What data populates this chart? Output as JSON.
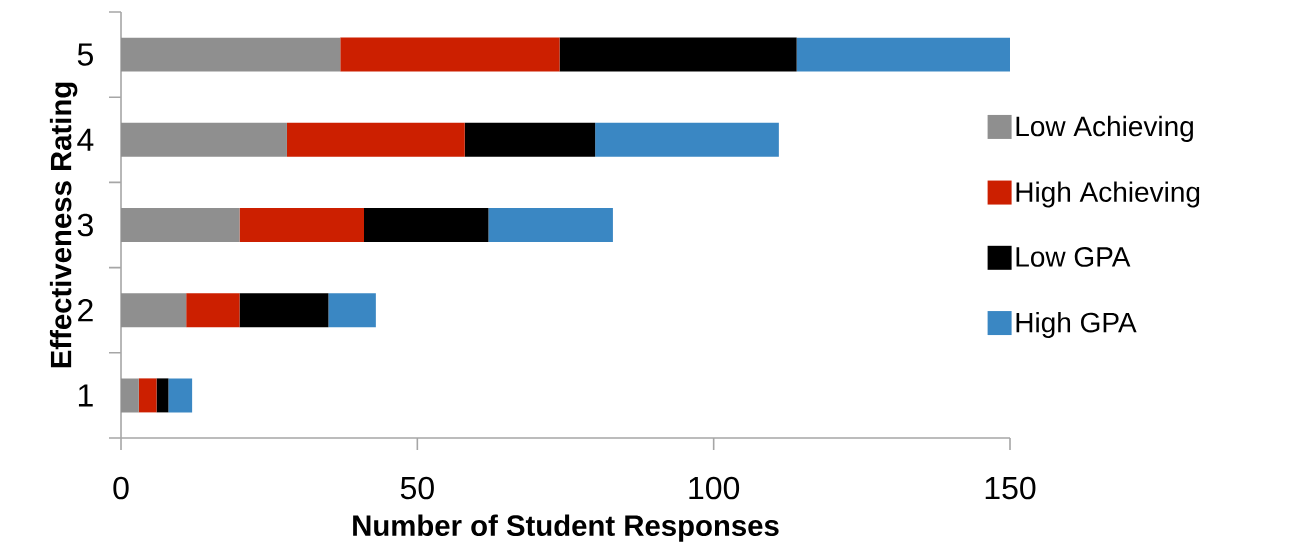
{
  "chart_data": {
    "type": "bar",
    "orientation": "horizontal",
    "stacked": true,
    "xlabel": "Number of Student Responses",
    "ylabel": "Effectiveness Rating",
    "categories": [
      "5",
      "4",
      "3",
      "2",
      "1"
    ],
    "series": [
      {
        "name": "Low Achieving",
        "color": "#8f8f8f",
        "values": [
          37,
          28,
          20,
          11,
          3
        ]
      },
      {
        "name": "High Achieving",
        "color": "#cc1f00",
        "values": [
          37,
          30,
          21,
          9,
          3
        ]
      },
      {
        "name": "Low GPA",
        "color": "#000000",
        "values": [
          40,
          22,
          21,
          15,
          2
        ]
      },
      {
        "name": "High GPA",
        "color": "#3a87c3",
        "values": [
          36,
          31,
          21,
          8,
          4
        ]
      }
    ],
    "xlim": [
      0,
      150
    ],
    "xticks": [
      0,
      50,
      100,
      150
    ],
    "grid": false,
    "legend": "right"
  }
}
